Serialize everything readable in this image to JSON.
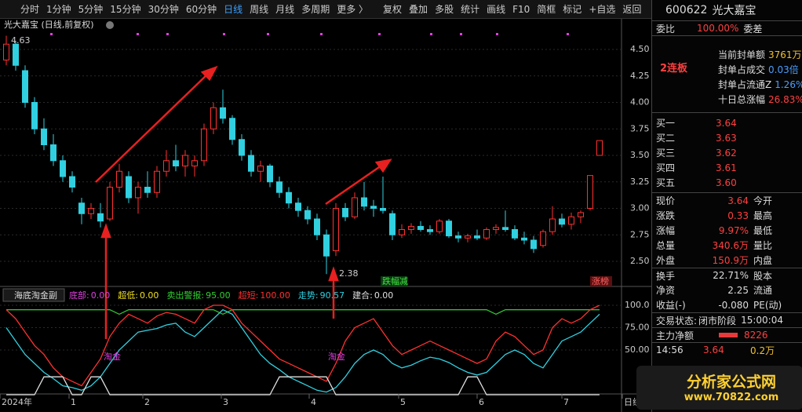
{
  "toolbar": {
    "items": [
      "分时",
      "1分钟",
      "5分钟",
      "15分钟",
      "30分钟",
      "60分钟",
      "日线",
      "周线",
      "月线",
      "多周期",
      "更多 〉",
      "复权",
      "叠加",
      "多股",
      "统计",
      "画线",
      "F10",
      "简框",
      "标记",
      "+自选",
      "返回"
    ]
  },
  "kline": {
    "title": "光大嘉宝 (日线,前复权)",
    "ylim": [
      2.38,
      4.63
    ],
    "yticks": [
      {
        "value": 4.5,
        "label": "4.50"
      },
      {
        "value": 4.25,
        "label": "4.25"
      },
      {
        "value": 4,
        "label": "4.00"
      },
      {
        "value": 3.75,
        "label": "3.75"
      },
      {
        "value": 3.5,
        "label": "3.50"
      },
      {
        "value": 3.25,
        "label": "3.25"
      },
      {
        "value": 3,
        "label": "3.00"
      },
      {
        "value": 2.75,
        "label": "2.75"
      },
      {
        "value": 2.5,
        "label": "2.50"
      }
    ],
    "high_label": "4.63",
    "low_label": "2.38",
    "tag_left": "跌幅减",
    "tag_right": "涨榜",
    "candles": [
      [
        4.4,
        4.63,
        4.35,
        4.55
      ],
      [
        4.55,
        4.58,
        4.3,
        4.35
      ],
      [
        4.3,
        4.35,
        3.95,
        4.0
      ],
      [
        4.0,
        4.05,
        3.7,
        3.75
      ],
      [
        3.75,
        3.85,
        3.55,
        3.6
      ],
      [
        3.6,
        3.7,
        3.4,
        3.45
      ],
      [
        3.45,
        3.5,
        3.25,
        3.3
      ],
      [
        3.3,
        3.35,
        3.15,
        3.2
      ],
      [
        3.05,
        3.1,
        2.85,
        2.95
      ],
      [
        2.95,
        3.05,
        2.9,
        3.0
      ],
      [
        2.95,
        3.05,
        2.82,
        2.88
      ],
      [
        2.9,
        3.25,
        2.88,
        3.2
      ],
      [
        3.2,
        3.42,
        3.15,
        3.35
      ],
      [
        3.3,
        3.35,
        3.05,
        3.1
      ],
      [
        3.1,
        3.25,
        2.95,
        3.2
      ],
      [
        3.2,
        3.35,
        3.1,
        3.15
      ],
      [
        3.15,
        3.4,
        3.1,
        3.35
      ],
      [
        3.35,
        3.55,
        3.3,
        3.45
      ],
      [
        3.45,
        3.6,
        3.35,
        3.4
      ],
      [
        3.4,
        3.55,
        3.3,
        3.5
      ],
      [
        3.4,
        3.5,
        3.3,
        3.45
      ],
      [
        3.45,
        3.8,
        3.4,
        3.75
      ],
      [
        3.75,
        4.0,
        3.7,
        3.95
      ],
      [
        3.95,
        4.12,
        3.8,
        3.85
      ],
      [
        3.85,
        3.88,
        3.6,
        3.65
      ],
      [
        3.65,
        3.7,
        3.45,
        3.5
      ],
      [
        3.5,
        3.55,
        3.3,
        3.35
      ],
      [
        3.35,
        3.45,
        3.25,
        3.4
      ],
      [
        3.4,
        3.42,
        3.2,
        3.25
      ],
      [
        3.25,
        3.3,
        3.1,
        3.15
      ],
      [
        3.15,
        3.2,
        3.0,
        3.05
      ],
      [
        3.05,
        3.1,
        2.92,
        2.98
      ],
      [
        2.98,
        3.02,
        2.85,
        2.9
      ],
      [
        2.9,
        2.95,
        2.7,
        2.75
      ],
      [
        2.75,
        2.8,
        2.38,
        2.55
      ],
      [
        2.6,
        3.05,
        2.55,
        3.0
      ],
      [
        3.0,
        3.05,
        2.88,
        2.92
      ],
      [
        2.92,
        3.15,
        2.9,
        3.1
      ],
      [
        3.1,
        3.25,
        2.98,
        3.02
      ],
      [
        3.02,
        3.08,
        2.92,
        3.0
      ],
      [
        3.0,
        3.3,
        2.95,
        2.98
      ],
      [
        2.95,
        2.98,
        2.7,
        2.75
      ],
      [
        2.75,
        2.85,
        2.72,
        2.8
      ],
      [
        2.8,
        2.86,
        2.76,
        2.83
      ],
      [
        2.83,
        2.88,
        2.78,
        2.8
      ],
      [
        2.8,
        2.84,
        2.75,
        2.78
      ],
      [
        2.78,
        2.9,
        2.76,
        2.88
      ],
      [
        2.88,
        2.9,
        2.72,
        2.74
      ],
      [
        2.74,
        2.78,
        2.68,
        2.72
      ],
      [
        2.72,
        2.76,
        2.68,
        2.74
      ],
      [
        2.74,
        2.8,
        2.7,
        2.72
      ],
      [
        2.72,
        2.82,
        2.7,
        2.8
      ],
      [
        2.8,
        2.85,
        2.76,
        2.82
      ],
      [
        2.82,
        2.98,
        2.78,
        2.8
      ],
      [
        2.8,
        2.84,
        2.7,
        2.72
      ],
      [
        2.72,
        2.78,
        2.66,
        2.7
      ],
      [
        2.7,
        2.74,
        2.58,
        2.62
      ],
      [
        2.65,
        2.8,
        2.63,
        2.78
      ],
      [
        2.78,
        3.02,
        2.75,
        2.9
      ],
      [
        2.9,
        2.95,
        2.82,
        2.85
      ],
      [
        2.85,
        2.96,
        2.8,
        2.92
      ],
      [
        2.92,
        2.98,
        2.86,
        2.96
      ],
      [
        3.0,
        3.31,
        2.98,
        3.31
      ],
      [
        3.5,
        3.64,
        3.5,
        3.64
      ]
    ]
  },
  "indicator": {
    "name": "海底淘金副",
    "legend": [
      {
        "label": "底部:",
        "value": "0.00",
        "color": "#e040e0"
      },
      {
        "label": "超低:",
        "value": "0.00",
        "color": "#f0e020"
      },
      {
        "label": "卖出警报:",
        "value": "95.00",
        "color": "#30d030"
      },
      {
        "label": "超短:",
        "value": "100.00",
        "color": "#ff3030"
      },
      {
        "label": "走势:",
        "value": "90.57",
        "color": "#30d0e0"
      },
      {
        "label": "建合:",
        "value": "0.00",
        "color": "#e0e0e0"
      }
    ],
    "ylim": [
      0,
      100
    ],
    "yticks": [
      {
        "value": 100,
        "label": "100.0"
      },
      {
        "value": 75,
        "label": "75.00"
      },
      {
        "value": 50,
        "label": "50.00"
      }
    ],
    "signal": "淘金",
    "series": [
      {
        "name": "卖出警报",
        "color": "#30c030",
        "values": [
          95,
          95,
          95,
          95,
          95,
          95,
          95,
          95,
          95,
          95,
          95,
          95,
          90,
          95,
          95,
          95,
          95,
          95,
          95,
          95,
          95,
          95,
          95,
          90,
          95,
          95,
          95,
          95,
          95,
          95,
          95,
          95,
          95,
          95,
          95,
          95,
          95,
          95,
          95,
          95,
          95,
          95,
          95,
          95,
          95,
          95,
          95,
          95,
          95,
          95,
          95,
          95,
          90,
          95,
          95,
          95,
          95,
          95,
          95,
          95,
          95,
          95,
          95,
          95
        ]
      },
      {
        "name": "超短",
        "color": "#ff3030",
        "values": [
          95,
          85,
          70,
          55,
          45,
          30,
          20,
          15,
          10,
          25,
          40,
          65,
          80,
          90,
          85,
          80,
          88,
          92,
          90,
          85,
          80,
          95,
          100,
          100,
          95,
          80,
          70,
          60,
          50,
          40,
          35,
          30,
          25,
          20,
          15,
          35,
          60,
          75,
          80,
          85,
          70,
          55,
          45,
          50,
          55,
          60,
          55,
          50,
          45,
          40,
          35,
          40,
          60,
          70,
          65,
          55,
          45,
          50,
          75,
          85,
          80,
          85,
          95,
          100
        ]
      },
      {
        "name": "走势",
        "color": "#30d0e0",
        "values": [
          75,
          60,
          45,
          35,
          25,
          18,
          10,
          8,
          5,
          10,
          20,
          35,
          50,
          60,
          70,
          72,
          74,
          78,
          80,
          70,
          65,
          75,
          85,
          95,
          90,
          75,
          60,
          45,
          35,
          28,
          20,
          15,
          10,
          5,
          3,
          8,
          20,
          35,
          45,
          50,
          45,
          35,
          30,
          33,
          38,
          42,
          40,
          36,
          30,
          25,
          22,
          25,
          35,
          45,
          50,
          45,
          35,
          30,
          45,
          60,
          65,
          70,
          80,
          90
        ]
      },
      {
        "name": "超低",
        "color": "#e0e0e0",
        "values": [
          0,
          0,
          0,
          0,
          20,
          20,
          20,
          0,
          0,
          20,
          20,
          0,
          0,
          0,
          0,
          0,
          0,
          0,
          0,
          0,
          0,
          0,
          0,
          0,
          0,
          0,
          0,
          0,
          0,
          20,
          20,
          20,
          20,
          20,
          20,
          0,
          0,
          0,
          0,
          0,
          0,
          0,
          0,
          0,
          0,
          0,
          0,
          0,
          0,
          20,
          20,
          0,
          0,
          0,
          0,
          0,
          0,
          0,
          0,
          0,
          0,
          0,
          0,
          0
        ]
      }
    ]
  },
  "xaxis": {
    "labels": [
      "2024年",
      "1",
      "2",
      "3",
      "4",
      "5",
      "6",
      "7",
      "日线"
    ]
  },
  "quote": {
    "code": "600622",
    "name": "光大嘉宝",
    "ratio_label": "委比",
    "ratio": "100.00%",
    "diff_label": "委差",
    "board": "2连板",
    "seal": [
      [
        "当前封单额",
        "3761万"
      ],
      [
        "封单占成交",
        "0.03倍"
      ],
      [
        "封单占流通Z",
        "1.26%"
      ],
      [
        "十日总涨幅",
        "26.83%"
      ]
    ],
    "bids": [
      [
        "买一",
        "3.64"
      ],
      [
        "买二",
        "3.63"
      ],
      [
        "买三",
        "3.62"
      ],
      [
        "买四",
        "3.61"
      ],
      [
        "买五",
        "3.60"
      ]
    ],
    "stats": [
      [
        "现价",
        "3.64",
        "今开"
      ],
      [
        "涨跌",
        "0.33",
        "最高"
      ],
      [
        "涨幅",
        "9.97%",
        "最低"
      ],
      [
        "总量",
        "340.6万",
        "量比"
      ],
      [
        "外盘",
        "150.9万",
        "内盘"
      ],
      [
        "换手",
        "22.71%",
        "股本"
      ],
      [
        "净资",
        "2.25",
        "流通"
      ],
      [
        "收益(-)",
        "-0.080",
        "PE(动)"
      ]
    ],
    "status_label": "交易状态:",
    "status": "闭市阶段",
    "time": "15:00:04",
    "main_net_label": "主力净额",
    "main_net": "8226",
    "tick": [
      "14:56",
      "3.64",
      "0.2万"
    ]
  },
  "logo": {
    "name": "分析家公式网",
    "url": "www.70822.com"
  }
}
